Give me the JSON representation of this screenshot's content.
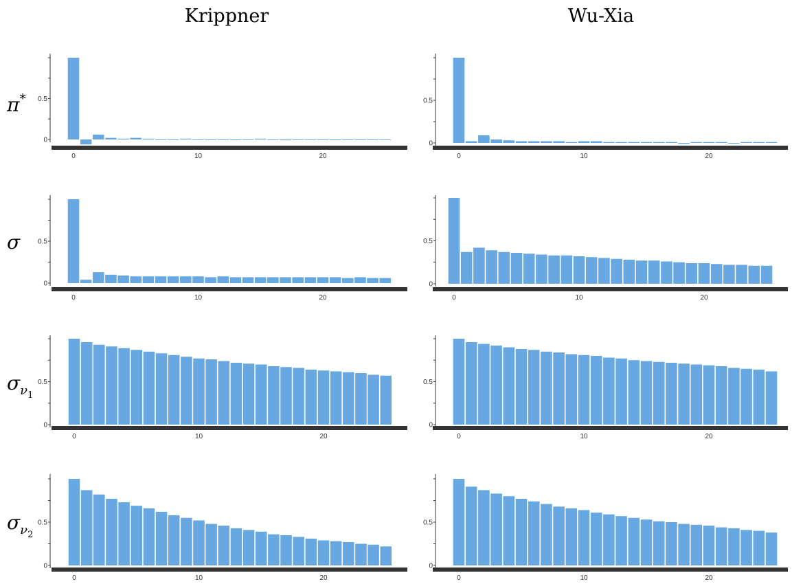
{
  "columns": [
    "Krippner",
    "Wu-Xia"
  ],
  "rows": [
    {
      "symbol": "π",
      "sup": "*",
      "sub": "",
      "subsub": ""
    },
    {
      "symbol": "σ",
      "sup": "",
      "sub": "",
      "subsub": ""
    },
    {
      "symbol": "σ",
      "sup": "",
      "sub": "ν",
      "subsub": "1"
    },
    {
      "symbol": "σ",
      "sup": "",
      "sub": "ν",
      "subsub": "2"
    }
  ],
  "colors": {
    "bar": "#67a8e2",
    "baseline": "#333333"
  },
  "chart_data": [
    {
      "type": "bar",
      "row": 0,
      "column": "Krippner",
      "x": [
        0,
        1,
        2,
        3,
        4,
        5,
        6,
        7,
        8,
        9,
        10,
        11,
        12,
        13,
        14,
        15,
        16,
        17,
        18,
        19,
        20,
        21,
        22,
        23,
        24,
        25
      ],
      "values": [
        1.0,
        -0.06,
        0.06,
        0.02,
        0.01,
        0.02,
        0.01,
        0.0,
        0.0,
        0.01,
        0.0,
        0.0,
        0.0,
        0.0,
        0.0,
        0.01,
        0.0,
        -0.01,
        0.0,
        0.0,
        0.0,
        0.0,
        0.0,
        0.0,
        0.0,
        0.0
      ],
      "xticks": [
        0,
        10,
        20
      ],
      "yticks": [
        0,
        0.5
      ],
      "ytick_labels": [
        "0",
        "0.5"
      ],
      "ylim": [
        -0.08,
        1.05
      ]
    },
    {
      "type": "bar",
      "row": 0,
      "column": "Wu-Xia",
      "x": [
        0,
        1,
        2,
        3,
        4,
        5,
        6,
        7,
        8,
        9,
        10,
        11,
        12,
        13,
        14,
        15,
        16,
        17,
        18,
        19,
        20,
        21,
        22,
        23,
        24,
        25
      ],
      "values": [
        1.0,
        0.02,
        0.09,
        0.04,
        0.03,
        0.02,
        0.02,
        0.02,
        0.02,
        0.01,
        0.02,
        0.02,
        0.01,
        0.01,
        0.01,
        0.01,
        0.01,
        0.01,
        -0.01,
        0.01,
        0.01,
        0.01,
        0.0,
        0.01,
        0.01,
        0.01
      ],
      "xticks": [
        0,
        10,
        20
      ],
      "yticks": [
        0,
        0.5
      ],
      "ytick_labels": [
        "0",
        "0.5"
      ],
      "ylim": [
        -0.03,
        1.05
      ]
    },
    {
      "type": "bar",
      "row": 1,
      "column": "Krippner",
      "x": [
        0,
        1,
        2,
        3,
        4,
        5,
        6,
        7,
        8,
        9,
        10,
        11,
        12,
        13,
        14,
        15,
        16,
        17,
        18,
        19,
        20,
        21,
        22,
        23,
        24,
        25
      ],
      "values": [
        1.0,
        0.04,
        0.13,
        0.1,
        0.09,
        0.08,
        0.08,
        0.08,
        0.08,
        0.08,
        0.08,
        0.07,
        0.08,
        0.07,
        0.07,
        0.07,
        0.07,
        0.07,
        0.07,
        0.07,
        0.07,
        0.07,
        0.06,
        0.07,
        0.06,
        0.06
      ],
      "xticks": [
        0,
        10,
        20
      ],
      "yticks": [
        0,
        0.5
      ],
      "ytick_labels": [
        "0",
        "0.5"
      ],
      "ylim": [
        -0.05,
        1.05
      ]
    },
    {
      "type": "bar",
      "row": 1,
      "column": "Wu-Xia",
      "x": [
        0,
        1,
        2,
        3,
        4,
        5,
        6,
        7,
        8,
        9,
        10,
        11,
        12,
        13,
        14,
        15,
        16,
        17,
        18,
        19,
        20,
        21,
        22,
        23,
        24,
        25
      ],
      "values": [
        1.0,
        0.37,
        0.42,
        0.39,
        0.37,
        0.36,
        0.35,
        0.34,
        0.33,
        0.33,
        0.32,
        0.31,
        0.3,
        0.29,
        0.28,
        0.27,
        0.27,
        0.26,
        0.25,
        0.24,
        0.24,
        0.23,
        0.22,
        0.22,
        0.21,
        0.21
      ],
      "xticks": [
        0,
        10,
        20
      ],
      "yticks": [
        0,
        0.5
      ],
      "ytick_labels": [
        "0",
        "0.5"
      ],
      "ylim": [
        -0.03,
        1.05
      ]
    },
    {
      "type": "bar",
      "row": 2,
      "column": "Krippner",
      "x": [
        0,
        1,
        2,
        3,
        4,
        5,
        6,
        7,
        8,
        9,
        10,
        11,
        12,
        13,
        14,
        15,
        16,
        17,
        18,
        19,
        20,
        21,
        22,
        23,
        24,
        25
      ],
      "values": [
        1.0,
        0.96,
        0.93,
        0.91,
        0.89,
        0.87,
        0.85,
        0.83,
        0.81,
        0.79,
        0.77,
        0.76,
        0.74,
        0.72,
        0.71,
        0.7,
        0.68,
        0.67,
        0.66,
        0.64,
        0.63,
        0.62,
        0.61,
        0.6,
        0.58,
        0.57
      ],
      "xticks": [
        0,
        10,
        20
      ],
      "yticks": [
        0,
        0.5
      ],
      "ytick_labels": [
        "0",
        "0.5"
      ],
      "ylim": [
        -0.02,
        1.05
      ]
    },
    {
      "type": "bar",
      "row": 2,
      "column": "Wu-Xia",
      "x": [
        0,
        1,
        2,
        3,
        4,
        5,
        6,
        7,
        8,
        9,
        10,
        11,
        12,
        13,
        14,
        15,
        16,
        17,
        18,
        19,
        20,
        21,
        22,
        23,
        24,
        25
      ],
      "values": [
        1.0,
        0.96,
        0.94,
        0.92,
        0.9,
        0.88,
        0.87,
        0.85,
        0.84,
        0.82,
        0.81,
        0.8,
        0.78,
        0.77,
        0.75,
        0.74,
        0.73,
        0.72,
        0.71,
        0.7,
        0.69,
        0.68,
        0.66,
        0.65,
        0.64,
        0.62
      ],
      "xticks": [
        0,
        10,
        20
      ],
      "yticks": [
        0,
        0.5
      ],
      "ytick_labels": [
        "0",
        "0.5"
      ],
      "ylim": [
        -0.02,
        1.05
      ]
    },
    {
      "type": "bar",
      "row": 3,
      "column": "Krippner",
      "x": [
        0,
        1,
        2,
        3,
        4,
        5,
        6,
        7,
        8,
        9,
        10,
        11,
        12,
        13,
        14,
        15,
        16,
        17,
        18,
        19,
        20,
        21,
        22,
        23,
        24,
        25
      ],
      "values": [
        1.0,
        0.87,
        0.82,
        0.77,
        0.73,
        0.69,
        0.66,
        0.62,
        0.58,
        0.55,
        0.52,
        0.48,
        0.46,
        0.43,
        0.41,
        0.39,
        0.36,
        0.35,
        0.33,
        0.31,
        0.29,
        0.28,
        0.27,
        0.25,
        0.24,
        0.22
      ],
      "xticks": [
        0,
        10,
        20
      ],
      "yticks": [
        0,
        0.5
      ],
      "ytick_labels": [
        "0",
        "0.5"
      ],
      "ylim": [
        -0.02,
        1.05
      ]
    },
    {
      "type": "bar",
      "row": 3,
      "column": "Wu-Xia",
      "x": [
        0,
        1,
        2,
        3,
        4,
        5,
        6,
        7,
        8,
        9,
        10,
        11,
        12,
        13,
        14,
        15,
        16,
        17,
        18,
        19,
        20,
        21,
        22,
        23,
        24,
        25
      ],
      "values": [
        1.0,
        0.91,
        0.87,
        0.83,
        0.8,
        0.77,
        0.74,
        0.71,
        0.68,
        0.66,
        0.64,
        0.61,
        0.59,
        0.57,
        0.55,
        0.53,
        0.51,
        0.5,
        0.48,
        0.47,
        0.46,
        0.44,
        0.43,
        0.41,
        0.4,
        0.38
      ],
      "xticks": [
        0,
        10,
        20
      ],
      "yticks": [
        0,
        0.5
      ],
      "ytick_labels": [
        "0",
        "0.5"
      ],
      "ylim": [
        -0.02,
        1.05
      ]
    }
  ]
}
